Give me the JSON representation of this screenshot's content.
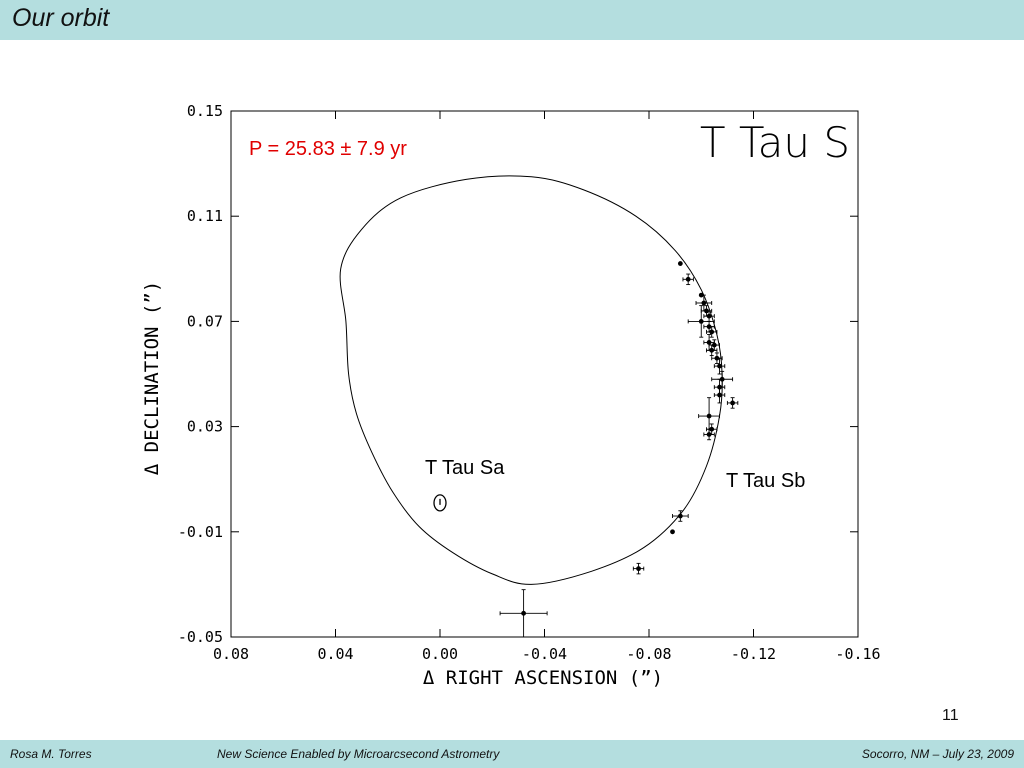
{
  "slide": {
    "title": "Our orbit",
    "page_number": "11",
    "footer": {
      "left": "Rosa M. Torres",
      "center": "New Science Enabled by Microarcsecond Astrometry",
      "right": "Socorro, NM – July 23, 2009"
    }
  },
  "chart_data": {
    "type": "scatter",
    "title": "T Tau S",
    "xlabel": "Δ RIGHT ASCENSION (”)",
    "ylabel": "Δ DECLINATION (”)",
    "xlim": [
      0.08,
      -0.16
    ],
    "ylim": [
      -0.05,
      0.15
    ],
    "xticks": [
      0.08,
      0.04,
      0.0,
      -0.04,
      -0.08,
      -0.12,
      -0.16
    ],
    "xtick_labels": [
      "0.08",
      "0.04",
      "0.00",
      "-0.04",
      "-0.08",
      "-0.12",
      "-0.16"
    ],
    "yticks": [
      0.15,
      0.11,
      0.07,
      0.03,
      -0.01,
      -0.05
    ],
    "ytick_labels": [
      "0.15",
      "0.11",
      "0.07",
      "0.03",
      "-0.01",
      "-0.05"
    ],
    "annotations": {
      "period": "P = 25.83 ± 7.9 yr",
      "primary_label": "T Tau Sa",
      "secondary_label": "T Tau Sb"
    },
    "orbit": [
      [
        -0.035,
        -0.03
      ],
      [
        -0.058,
        -0.025
      ],
      [
        -0.078,
        -0.016
      ],
      [
        -0.093,
        -0.002
      ],
      [
        -0.102,
        0.015
      ],
      [
        -0.107,
        0.034
      ],
      [
        -0.108,
        0.05
      ],
      [
        -0.106,
        0.065
      ],
      [
        -0.1,
        0.082
      ],
      [
        -0.09,
        0.097
      ],
      [
        -0.075,
        0.11
      ],
      [
        -0.055,
        0.12
      ],
      [
        -0.035,
        0.125
      ],
      [
        -0.01,
        0.124
      ],
      [
        0.015,
        0.117
      ],
      [
        0.03,
        0.105
      ],
      [
        0.038,
        0.09
      ],
      [
        0.036,
        0.07
      ],
      [
        0.035,
        0.05
      ],
      [
        0.032,
        0.035
      ],
      [
        0.026,
        0.02
      ],
      [
        0.018,
        0.005
      ],
      [
        0.008,
        -0.008
      ],
      [
        -0.005,
        -0.018
      ],
      [
        -0.02,
        -0.026
      ]
    ],
    "primary": {
      "x": 0.0,
      "y": 0.001
    },
    "points": [
      {
        "x": -0.092,
        "y": 0.092,
        "ex": 0.0,
        "ey": 0.0
      },
      {
        "x": -0.095,
        "y": 0.086,
        "ex": 0.002,
        "ey": 0.002
      },
      {
        "x": -0.1,
        "y": 0.08,
        "ex": 0.0,
        "ey": 0.0
      },
      {
        "x": -0.101,
        "y": 0.077,
        "ex": 0.003,
        "ey": 0.003
      },
      {
        "x": -0.102,
        "y": 0.074,
        "ex": 0.002,
        "ey": 0.002
      },
      {
        "x": -0.103,
        "y": 0.072,
        "ex": 0.002,
        "ey": 0.002
      },
      {
        "x": -0.1,
        "y": 0.07,
        "ex": 0.005,
        "ey": 0.006
      },
      {
        "x": -0.103,
        "y": 0.068,
        "ex": 0.002,
        "ey": 0.002
      },
      {
        "x": -0.104,
        "y": 0.066,
        "ex": 0.002,
        "ey": 0.002
      },
      {
        "x": -0.103,
        "y": 0.062,
        "ex": 0.002,
        "ey": 0.003
      },
      {
        "x": -0.105,
        "y": 0.061,
        "ex": 0.002,
        "ey": 0.002
      },
      {
        "x": -0.104,
        "y": 0.059,
        "ex": 0.002,
        "ey": 0.002
      },
      {
        "x": -0.106,
        "y": 0.056,
        "ex": 0.002,
        "ey": 0.002
      },
      {
        "x": -0.107,
        "y": 0.053,
        "ex": 0.002,
        "ey": 0.003
      },
      {
        "x": -0.108,
        "y": 0.048,
        "ex": 0.004,
        "ey": 0.003
      },
      {
        "x": -0.107,
        "y": 0.045,
        "ex": 0.002,
        "ey": 0.003
      },
      {
        "x": -0.107,
        "y": 0.042,
        "ex": 0.002,
        "ey": 0.003
      },
      {
        "x": -0.112,
        "y": 0.039,
        "ex": 0.002,
        "ey": 0.002
      },
      {
        "x": -0.103,
        "y": 0.034,
        "ex": 0.004,
        "ey": 0.007
      },
      {
        "x": -0.104,
        "y": 0.029,
        "ex": 0.002,
        "ey": 0.002
      },
      {
        "x": -0.103,
        "y": 0.027,
        "ex": 0.002,
        "ey": 0.002
      },
      {
        "x": -0.092,
        "y": -0.004,
        "ex": 0.003,
        "ey": 0.002
      },
      {
        "x": -0.089,
        "y": -0.01,
        "ex": 0.0,
        "ey": 0.0
      },
      {
        "x": -0.076,
        "y": -0.024,
        "ex": 0.002,
        "ey": 0.002
      },
      {
        "x": -0.032,
        "y": -0.041,
        "ex": 0.009,
        "ey": 0.009
      }
    ]
  }
}
